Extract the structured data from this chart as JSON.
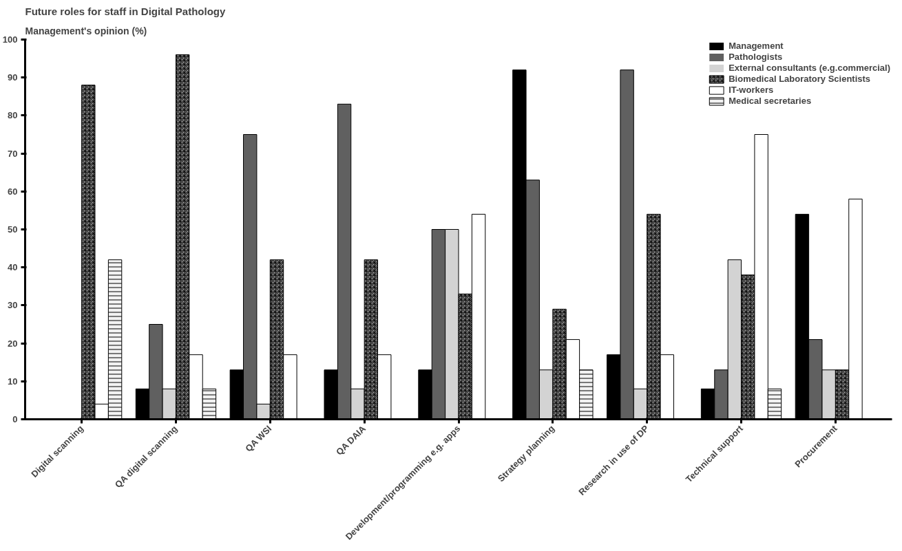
{
  "chart_data": {
    "type": "bar",
    "title": "Future roles for staff in Digital Pathology",
    "ylabel": "Management's opinion (%)",
    "categories": [
      "Digital scanning",
      "QA digital scanning",
      "QA WSI",
      "QA DAIA",
      "Development/programming e.g. apps",
      "Strategy planning",
      "Research in use of DP",
      "Technical support",
      "Procurement"
    ],
    "series": [
      {
        "name": "Management",
        "color": "#000000",
        "values": [
          0,
          8,
          13,
          13,
          13,
          92,
          17,
          8,
          54
        ]
      },
      {
        "name": "Pathologists",
        "color": "#606060",
        "values": [
          0,
          25,
          75,
          83,
          50,
          63,
          92,
          13,
          21
        ]
      },
      {
        "name": "External consultants (e.g.commercial)",
        "color": "#d3d3d3",
        "values": [
          0,
          8,
          4,
          8,
          50,
          13,
          8,
          42,
          13
        ]
      },
      {
        "name": "Biomedical Laboratory Scientists",
        "color": "#8a8a8a",
        "values": [
          88,
          96,
          42,
          42,
          33,
          29,
          54,
          38,
          13
        ]
      },
      {
        "name": "IT-workers",
        "color": "#ffffff",
        "values": [
          4,
          17,
          17,
          17,
          54,
          21,
          17,
          75,
          58
        ]
      },
      {
        "name": "Medical secretaries",
        "color": "#f2f2f2",
        "values": [
          42,
          8,
          0,
          0,
          0,
          13,
          0,
          8,
          0
        ]
      }
    ],
    "ylim": [
      0,
      100
    ],
    "yticks": [
      0,
      10,
      20,
      30,
      40,
      50,
      60,
      70,
      80,
      90,
      100
    ],
    "grid": false,
    "legend": "top right"
  }
}
